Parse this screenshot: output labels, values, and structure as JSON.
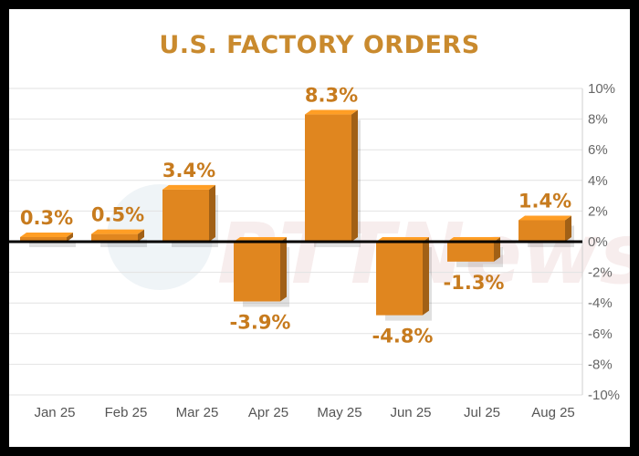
{
  "chart_data": {
    "type": "bar",
    "title": "U.S. FACTORY ORDERS",
    "categories": [
      "Jan 25",
      "Feb 25",
      "Mar 25",
      "Apr 25",
      "May 25",
      "Jun 25",
      "Jul 25",
      "Aug 25"
    ],
    "values": [
      0.3,
      0.5,
      3.4,
      -3.9,
      8.3,
      -4.8,
      -1.3,
      1.4
    ],
    "data_labels": [
      "0.3%",
      "0.5%",
      "3.4%",
      "-3.9%",
      "8.3%",
      "-4.8%",
      "-1.3%",
      "1.4%"
    ],
    "y_ticks": [
      10,
      8,
      6,
      4,
      2,
      0,
      -2,
      -4,
      -6,
      -8,
      -10
    ],
    "y_tick_labels": [
      "10%",
      "8%",
      "6%",
      "4%",
      "2%",
      "0%",
      "-2%",
      "-4%",
      "-6%",
      "-8%",
      "-10%"
    ],
    "ylim": [
      -10,
      10
    ],
    "y_axis_position": "right",
    "grid": true,
    "bar_color": "#e0861f",
    "label_color": "#c77b1e",
    "title_color": "#c98a2e",
    "watermark": "RTTNews"
  }
}
